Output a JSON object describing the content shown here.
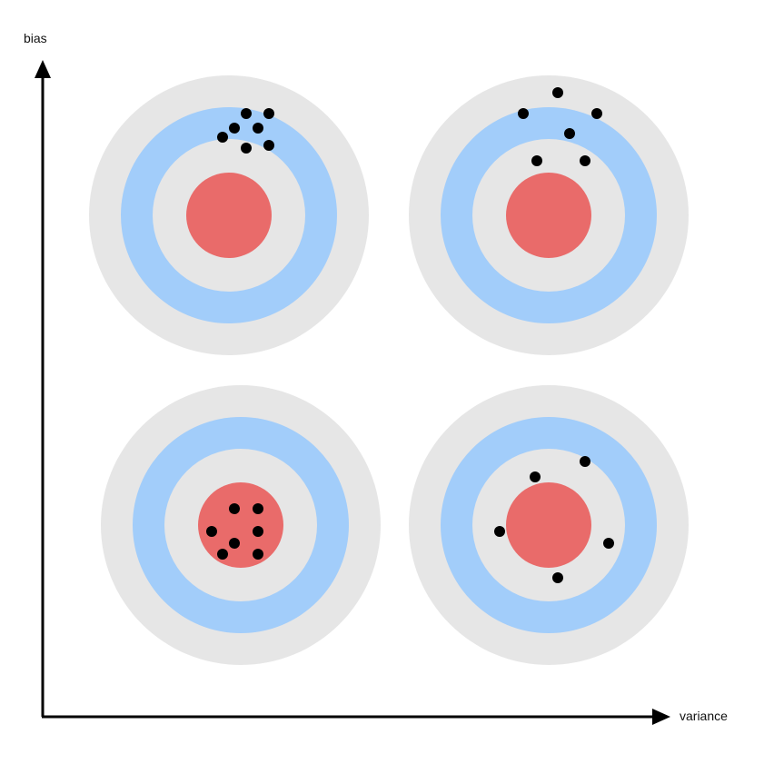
{
  "axes": {
    "y_label": "bias",
    "x_label": "variance"
  },
  "colors": {
    "outer_ring": "#e6e6e6",
    "middle_ring": "#a2cdfa",
    "inner_ring": "#e6e6e6",
    "bullseye": "#e96b6a",
    "shot": "#000000",
    "axis": "#000000"
  },
  "targets": [
    {
      "name": "high-bias-low-variance",
      "shots": 7
    },
    {
      "name": "high-bias-high-variance",
      "shots": 6
    },
    {
      "name": "low-bias-low-variance",
      "shots": 7
    },
    {
      "name": "low-bias-high-variance",
      "shots": 5
    }
  ]
}
